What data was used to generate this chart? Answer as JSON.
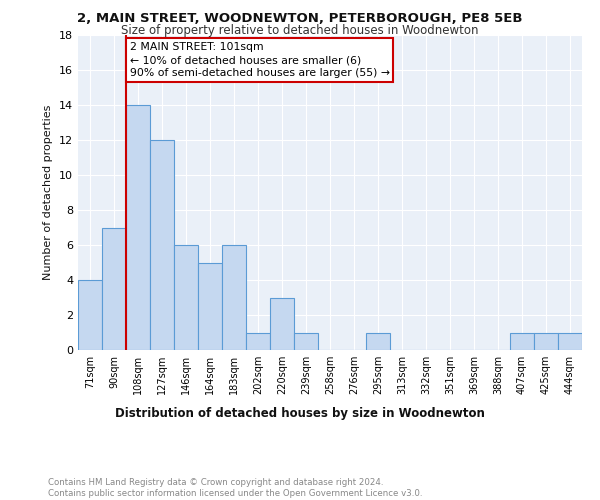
{
  "title1": "2, MAIN STREET, WOODNEWTON, PETERBOROUGH, PE8 5EB",
  "title2": "Size of property relative to detached houses in Woodnewton",
  "xlabel": "Distribution of detached houses by size in Woodnewton",
  "ylabel": "Number of detached properties",
  "categories": [
    "71sqm",
    "90sqm",
    "108sqm",
    "127sqm",
    "146sqm",
    "164sqm",
    "183sqm",
    "202sqm",
    "220sqm",
    "239sqm",
    "258sqm",
    "276sqm",
    "295sqm",
    "313sqm",
    "332sqm",
    "351sqm",
    "369sqm",
    "388sqm",
    "407sqm",
    "425sqm",
    "444sqm"
  ],
  "values": [
    4,
    7,
    14,
    12,
    6,
    5,
    6,
    1,
    3,
    1,
    0,
    0,
    1,
    0,
    0,
    0,
    0,
    0,
    1,
    1,
    1
  ],
  "bar_color": "#c5d8f0",
  "bar_edge_color": "#5b9bd5",
  "vline_x_index": 2,
  "vline_color": "#cc0000",
  "annotation_line1": "2 MAIN STREET: 101sqm",
  "annotation_line2": "← 10% of detached houses are smaller (6)",
  "annotation_line3": "90% of semi-detached houses are larger (55) →",
  "annotation_box_color": "#ffffff",
  "annotation_box_edge": "#cc0000",
  "ylim": [
    0,
    18
  ],
  "yticks": [
    0,
    2,
    4,
    6,
    8,
    10,
    12,
    14,
    16,
    18
  ],
  "footer1": "Contains HM Land Registry data © Crown copyright and database right 2024.",
  "footer2": "Contains public sector information licensed under the Open Government Licence v3.0.",
  "background_color": "#eaf0f8",
  "grid_color": "#ffffff",
  "title1_fontsize": 9.5,
  "title2_fontsize": 8.5,
  "ylabel_fontsize": 8,
  "xlabel_fontsize": 8.5,
  "tick_fontsize": 7,
  "ytick_fontsize": 8,
  "footer_fontsize": 6.2,
  "ann_fontsize": 7.8
}
